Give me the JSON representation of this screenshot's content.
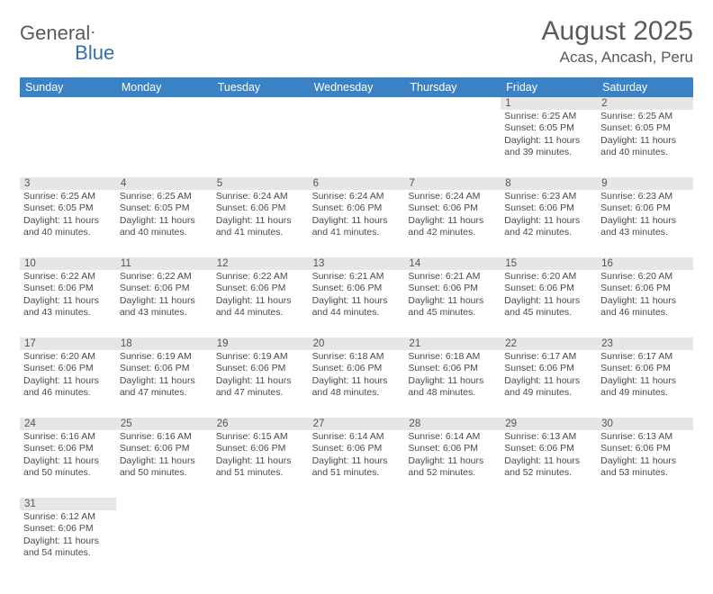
{
  "logo": {
    "text1": "General",
    "text2": "Blue",
    "flag_color": "#2f6fad"
  },
  "title": "August 2025",
  "location": "Acas, Ancash, Peru",
  "colors": {
    "header_bg": "#3b82c4",
    "header_text": "#ffffff",
    "daynum_bg": "#e6e6e6",
    "row_divider": "#3b82c4",
    "text": "#4a4a4a"
  },
  "day_names": [
    "Sunday",
    "Monday",
    "Tuesday",
    "Wednesday",
    "Thursday",
    "Friday",
    "Saturday"
  ],
  "weeks": [
    [
      null,
      null,
      null,
      null,
      null,
      {
        "n": "1",
        "sr": "6:25 AM",
        "ss": "6:05 PM",
        "dl": "11 hours and 39 minutes."
      },
      {
        "n": "2",
        "sr": "6:25 AM",
        "ss": "6:05 PM",
        "dl": "11 hours and 40 minutes."
      }
    ],
    [
      {
        "n": "3",
        "sr": "6:25 AM",
        "ss": "6:05 PM",
        "dl": "11 hours and 40 minutes."
      },
      {
        "n": "4",
        "sr": "6:25 AM",
        "ss": "6:05 PM",
        "dl": "11 hours and 40 minutes."
      },
      {
        "n": "5",
        "sr": "6:24 AM",
        "ss": "6:06 PM",
        "dl": "11 hours and 41 minutes."
      },
      {
        "n": "6",
        "sr": "6:24 AM",
        "ss": "6:06 PM",
        "dl": "11 hours and 41 minutes."
      },
      {
        "n": "7",
        "sr": "6:24 AM",
        "ss": "6:06 PM",
        "dl": "11 hours and 42 minutes."
      },
      {
        "n": "8",
        "sr": "6:23 AM",
        "ss": "6:06 PM",
        "dl": "11 hours and 42 minutes."
      },
      {
        "n": "9",
        "sr": "6:23 AM",
        "ss": "6:06 PM",
        "dl": "11 hours and 43 minutes."
      }
    ],
    [
      {
        "n": "10",
        "sr": "6:22 AM",
        "ss": "6:06 PM",
        "dl": "11 hours and 43 minutes."
      },
      {
        "n": "11",
        "sr": "6:22 AM",
        "ss": "6:06 PM",
        "dl": "11 hours and 43 minutes."
      },
      {
        "n": "12",
        "sr": "6:22 AM",
        "ss": "6:06 PM",
        "dl": "11 hours and 44 minutes."
      },
      {
        "n": "13",
        "sr": "6:21 AM",
        "ss": "6:06 PM",
        "dl": "11 hours and 44 minutes."
      },
      {
        "n": "14",
        "sr": "6:21 AM",
        "ss": "6:06 PM",
        "dl": "11 hours and 45 minutes."
      },
      {
        "n": "15",
        "sr": "6:20 AM",
        "ss": "6:06 PM",
        "dl": "11 hours and 45 minutes."
      },
      {
        "n": "16",
        "sr": "6:20 AM",
        "ss": "6:06 PM",
        "dl": "11 hours and 46 minutes."
      }
    ],
    [
      {
        "n": "17",
        "sr": "6:20 AM",
        "ss": "6:06 PM",
        "dl": "11 hours and 46 minutes."
      },
      {
        "n": "18",
        "sr": "6:19 AM",
        "ss": "6:06 PM",
        "dl": "11 hours and 47 minutes."
      },
      {
        "n": "19",
        "sr": "6:19 AM",
        "ss": "6:06 PM",
        "dl": "11 hours and 47 minutes."
      },
      {
        "n": "20",
        "sr": "6:18 AM",
        "ss": "6:06 PM",
        "dl": "11 hours and 48 minutes."
      },
      {
        "n": "21",
        "sr": "6:18 AM",
        "ss": "6:06 PM",
        "dl": "11 hours and 48 minutes."
      },
      {
        "n": "22",
        "sr": "6:17 AM",
        "ss": "6:06 PM",
        "dl": "11 hours and 49 minutes."
      },
      {
        "n": "23",
        "sr": "6:17 AM",
        "ss": "6:06 PM",
        "dl": "11 hours and 49 minutes."
      }
    ],
    [
      {
        "n": "24",
        "sr": "6:16 AM",
        "ss": "6:06 PM",
        "dl": "11 hours and 50 minutes."
      },
      {
        "n": "25",
        "sr": "6:16 AM",
        "ss": "6:06 PM",
        "dl": "11 hours and 50 minutes."
      },
      {
        "n": "26",
        "sr": "6:15 AM",
        "ss": "6:06 PM",
        "dl": "11 hours and 51 minutes."
      },
      {
        "n": "27",
        "sr": "6:14 AM",
        "ss": "6:06 PM",
        "dl": "11 hours and 51 minutes."
      },
      {
        "n": "28",
        "sr": "6:14 AM",
        "ss": "6:06 PM",
        "dl": "11 hours and 52 minutes."
      },
      {
        "n": "29",
        "sr": "6:13 AM",
        "ss": "6:06 PM",
        "dl": "11 hours and 52 minutes."
      },
      {
        "n": "30",
        "sr": "6:13 AM",
        "ss": "6:06 PM",
        "dl": "11 hours and 53 minutes."
      }
    ],
    [
      {
        "n": "31",
        "sr": "6:12 AM",
        "ss": "6:06 PM",
        "dl": "11 hours and 54 minutes."
      },
      null,
      null,
      null,
      null,
      null,
      null
    ]
  ],
  "labels": {
    "sunrise": "Sunrise:",
    "sunset": "Sunset:",
    "daylight": "Daylight:"
  }
}
